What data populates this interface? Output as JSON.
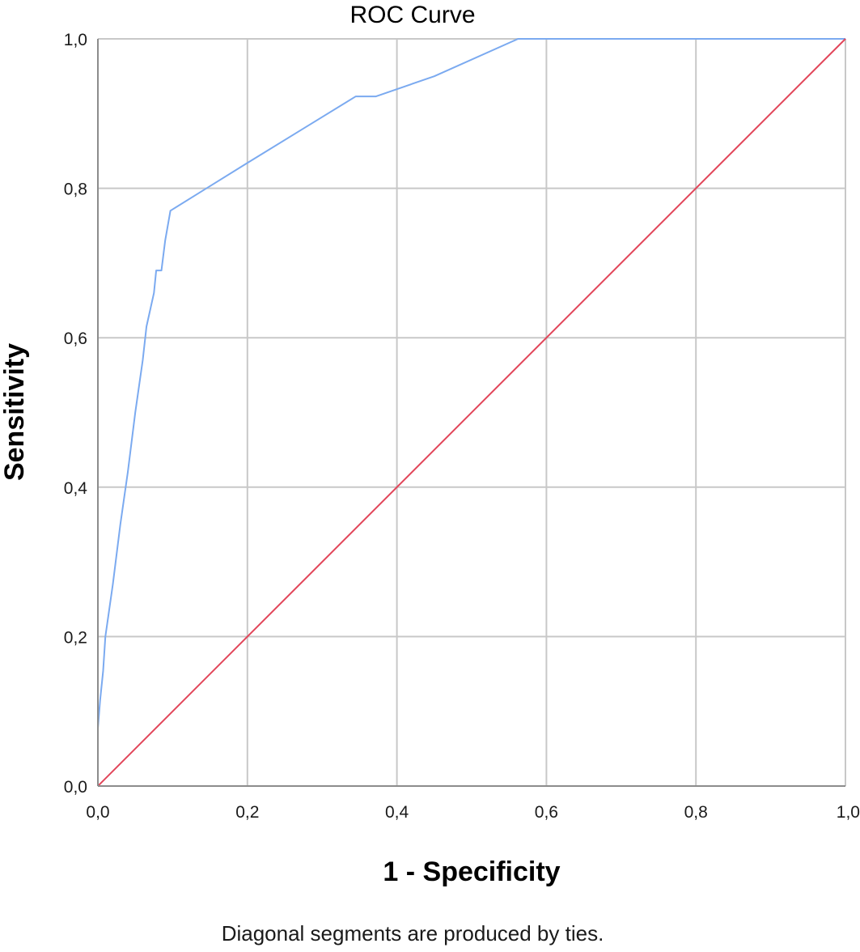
{
  "chart_data": {
    "type": "line",
    "title": "ROC Curve",
    "xlabel": "1 - Specificity",
    "ylabel": "Sensitivity",
    "footnote": "Diagonal segments are produced by ties.",
    "xlim": [
      0,
      1
    ],
    "ylim": [
      0,
      1
    ],
    "grid": true,
    "x_ticks": [
      0,
      0.2,
      0.4,
      0.6,
      0.8,
      1.0
    ],
    "y_ticks": [
      0,
      0.2,
      0.4,
      0.6,
      0.8,
      1.0
    ],
    "x_tick_labels": [
      "0,0",
      "0,2",
      "0,4",
      "0,6",
      "0,8",
      "1,0"
    ],
    "y_tick_labels": [
      "0,0",
      "0,2",
      "0,4",
      "0,6",
      "0,8",
      "1,0"
    ],
    "series": [
      {
        "color": "#7baaf0",
        "x": [
          0,
          0,
          0.003,
          0.007,
          0.01,
          0.02,
          0.03,
          0.04,
          0.05,
          0.06,
          0.065,
          0.075,
          0.078,
          0.083,
          0.085,
          0.09,
          0.097,
          0.2,
          0.345,
          0.372,
          0.45,
          0.562,
          0.65,
          0.8,
          1.0
        ],
        "y": [
          0,
          0.077,
          0.115,
          0.154,
          0.2,
          0.27,
          0.35,
          0.42,
          0.5,
          0.57,
          0.615,
          0.66,
          0.69,
          0.69,
          0.69,
          0.73,
          0.77,
          0.834,
          0.923,
          0.923,
          0.95,
          1.0,
          1.0,
          1.0,
          1.0
        ]
      },
      {
        "color": "#e2465a",
        "x": [
          0,
          1
        ],
        "y": [
          0,
          1
        ]
      }
    ]
  }
}
